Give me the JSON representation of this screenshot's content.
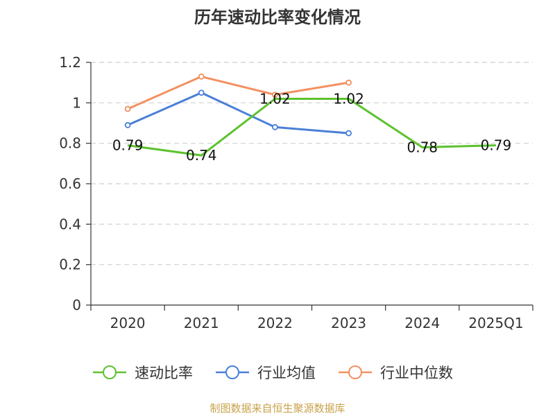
{
  "chart_data": {
    "type": "line",
    "title": "历年速动比率变化情况",
    "categories": [
      "2020",
      "2021",
      "2022",
      "2023",
      "2024",
      "2025Q1"
    ],
    "y_ticks": [
      "0",
      "0.2",
      "0.4",
      "0.6",
      "0.8",
      "1",
      "1.2"
    ],
    "ylim": [
      0,
      1.2
    ],
    "grid": true,
    "legend_position": "bottom",
    "series": [
      {
        "name": "速动比率",
        "color": "#5cc22e",
        "values": [
          0.79,
          0.74,
          1.02,
          1.02,
          0.78,
          0.79
        ],
        "labels": [
          "0.79",
          "0.74",
          "1.02",
          "1.02",
          "0.78",
          "0.79"
        ]
      },
      {
        "name": "行业均值",
        "color": "#4a7fd8",
        "values": [
          0.89,
          1.05,
          0.88,
          0.85,
          null,
          null
        ]
      },
      {
        "name": "行业中位数",
        "color": "#f39060",
        "values": [
          0.97,
          1.13,
          1.04,
          1.1,
          null,
          null
        ]
      }
    ],
    "source": "制图数据来自恒生聚源数据库"
  }
}
